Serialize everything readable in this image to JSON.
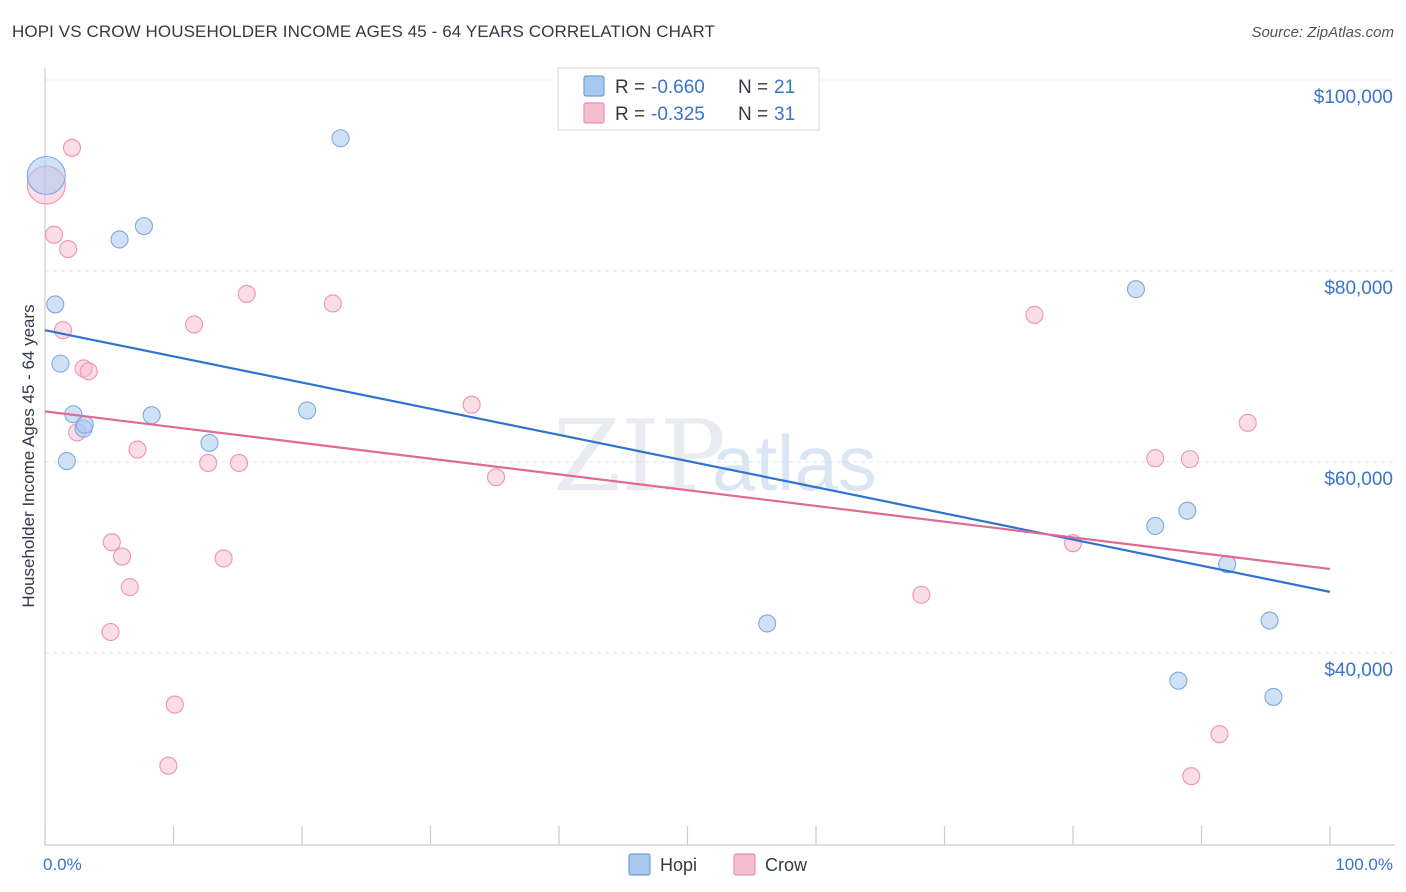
{
  "title": "HOPI VS CROW HOUSEHOLDER INCOME AGES 45 - 64 YEARS CORRELATION CHART",
  "source": "Source: ZipAtlas.com",
  "watermark": {
    "zip": "ZIP",
    "atlas": "atlas"
  },
  "colors": {
    "hopi": "#a9c8ef",
    "hopi_line": "#2f74d0",
    "crow": "#f6bcd0",
    "crow_line": "#e06a95",
    "tick": "#3a74c8"
  },
  "legend": {
    "rows": [
      {
        "r_label": "R =",
        "r_value": "-0.660",
        "n_label": "N =",
        "n_value": "21"
      },
      {
        "r_label": "R =",
        "r_value": "-0.325",
        "n_label": "N =",
        "n_value": "31"
      }
    ]
  },
  "bottom_legend": {
    "hopi": "Hopi",
    "crow": "Crow"
  },
  "chart_data": {
    "type": "scatter",
    "title": "HOPI VS CROW HOUSEHOLDER INCOME AGES 45 - 64 YEARS CORRELATION CHART",
    "xlabel": "",
    "ylabel": "Householder Income Ages 45 - 64 years",
    "xlim": [
      0,
      100
    ],
    "ylim": [
      20000,
      102000
    ],
    "x_tick_labels": [
      "0.0%",
      "100.0%"
    ],
    "y_ticks": [
      40000,
      60000,
      80000,
      100000
    ],
    "y_tick_labels": [
      "$40,000",
      "$60,000",
      "$80,000",
      "$100,000"
    ],
    "grid": true,
    "series": [
      {
        "name": "Hopi",
        "points": [
          {
            "x": 0.1,
            "y": 90000,
            "big": true
          },
          {
            "x": 0.8,
            "y": 76500
          },
          {
            "x": 1.2,
            "y": 70300
          },
          {
            "x": 1.7,
            "y": 60100
          },
          {
            "x": 2.2,
            "y": 65000
          },
          {
            "x": 3.0,
            "y": 63500
          },
          {
            "x": 3.1,
            "y": 63900
          },
          {
            "x": 5.8,
            "y": 83300
          },
          {
            "x": 7.7,
            "y": 84700
          },
          {
            "x": 8.3,
            "y": 64900
          },
          {
            "x": 12.8,
            "y": 62000
          },
          {
            "x": 20.4,
            "y": 65400
          },
          {
            "x": 23.0,
            "y": 93900
          },
          {
            "x": 56.2,
            "y": 43100
          },
          {
            "x": 84.9,
            "y": 78100
          },
          {
            "x": 86.4,
            "y": 53300
          },
          {
            "x": 88.2,
            "y": 37100
          },
          {
            "x": 88.9,
            "y": 54900
          },
          {
            "x": 92.0,
            "y": 49300
          },
          {
            "x": 95.3,
            "y": 43400
          },
          {
            "x": 95.6,
            "y": 35400
          }
        ],
        "trend": {
          "x0": 0,
          "y0": 73800,
          "x1": 100,
          "y1": 46400
        }
      },
      {
        "name": "Crow",
        "points": [
          {
            "x": 0.1,
            "y": 89000,
            "big": true
          },
          {
            "x": 0.7,
            "y": 83800
          },
          {
            "x": 1.4,
            "y": 73800
          },
          {
            "x": 1.8,
            "y": 82300
          },
          {
            "x": 2.1,
            "y": 92900
          },
          {
            "x": 2.5,
            "y": 63100
          },
          {
            "x": 3.0,
            "y": 69800
          },
          {
            "x": 3.4,
            "y": 69500
          },
          {
            "x": 5.1,
            "y": 42200
          },
          {
            "x": 5.2,
            "y": 51600
          },
          {
            "x": 6.0,
            "y": 50100
          },
          {
            "x": 6.6,
            "y": 46900
          },
          {
            "x": 7.2,
            "y": 61300
          },
          {
            "x": 9.6,
            "y": 28200
          },
          {
            "x": 10.1,
            "y": 34600
          },
          {
            "x": 11.6,
            "y": 74400
          },
          {
            "x": 12.7,
            "y": 59900
          },
          {
            "x": 13.9,
            "y": 49900
          },
          {
            "x": 15.1,
            "y": 59900
          },
          {
            "x": 15.7,
            "y": 77600
          },
          {
            "x": 22.4,
            "y": 76600
          },
          {
            "x": 33.2,
            "y": 66000
          },
          {
            "x": 35.1,
            "y": 58400
          },
          {
            "x": 68.2,
            "y": 46100
          },
          {
            "x": 77.0,
            "y": 75400
          },
          {
            "x": 80.0,
            "y": 51500
          },
          {
            "x": 86.4,
            "y": 60400
          },
          {
            "x": 89.1,
            "y": 60300
          },
          {
            "x": 89.2,
            "y": 27100
          },
          {
            "x": 91.4,
            "y": 31500
          },
          {
            "x": 93.6,
            "y": 64100
          }
        ],
        "trend": {
          "x0": 0,
          "y0": 65300,
          "x1": 100,
          "y1": 48800
        }
      }
    ]
  }
}
